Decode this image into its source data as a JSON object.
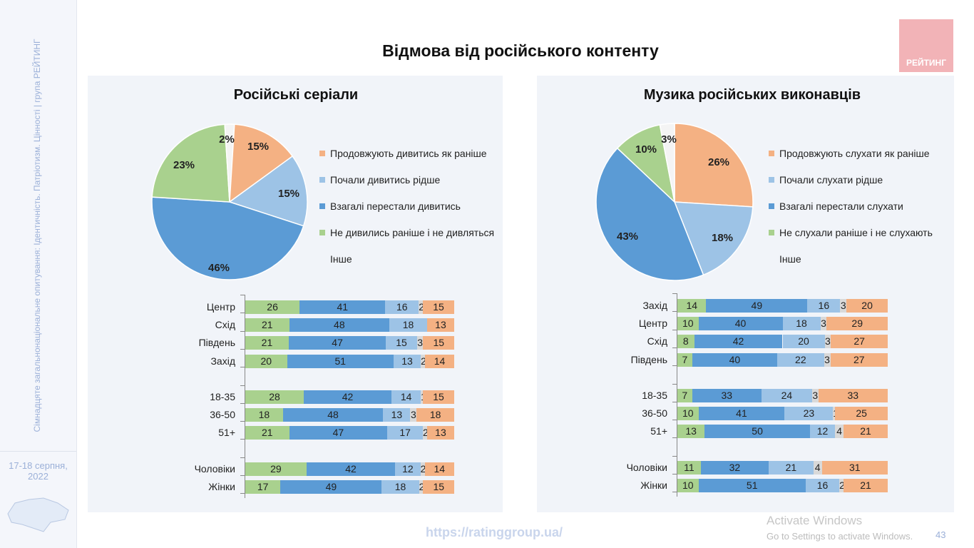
{
  "sidebar": {
    "caption": "Сімнадцяте загальнонаціональне опитування: Ідентичність. Патріотизм. Цінності | група РЕЙТИНГ",
    "date": "17-18 серпня, 2022"
  },
  "header": {
    "title": "Відмова від російського контенту",
    "logo": "РЕЙТИНГ"
  },
  "footer": {
    "url": "https://ratinggroup.ua/",
    "page": "43"
  },
  "watermark": {
    "line1": "Activate Windows",
    "line2": "Go to Settings to activate Windows."
  },
  "colors": {
    "continue": "#f4b183",
    "less": "#9dc3e6",
    "stopped": "#5b9bd5",
    "never": "#a9d18e",
    "other": "#d9d9d9"
  },
  "chart_data": [
    {
      "type": "pie",
      "title": "Російські серіали",
      "legend": [
        "Продовжують дивитись як раніше",
        "Почали дивитись рідше",
        "Взагалі перестали дивитись",
        "Не дивились раніше і не дивляться",
        "Інше"
      ],
      "values": [
        15,
        15,
        46,
        23,
        2
      ],
      "labels": [
        "15%",
        "15%",
        "46%",
        "23%",
        "2%"
      ],
      "bars": {
        "type": "bar",
        "stacked": true,
        "order": [
          "never",
          "stopped",
          "less",
          "other",
          "continue"
        ],
        "categories": [
          "Центр",
          "Схід",
          "Південь",
          "Захід",
          "",
          "18-35",
          "36-50",
          "51+",
          "",
          "Чоловіки",
          "Жінки"
        ],
        "rows": [
          [
            26,
            41,
            16,
            2,
            15
          ],
          [
            21,
            48,
            18,
            0,
            13
          ],
          [
            21,
            47,
            15,
            3,
            15
          ],
          [
            20,
            51,
            13,
            2,
            14
          ],
          null,
          [
            28,
            42,
            14,
            1,
            15
          ],
          [
            18,
            48,
            13,
            3,
            18
          ],
          [
            21,
            47,
            17,
            2,
            13
          ],
          null,
          [
            29,
            42,
            12,
            2,
            14
          ],
          [
            17,
            49,
            18,
            2,
            15
          ]
        ]
      }
    },
    {
      "type": "pie",
      "title": "Музика російських виконавців",
      "legend": [
        "Продовжують слухати як раніше",
        "Почали слухати рідше",
        "Взагалі перестали слухати",
        "Не слухали раніше і не слухають",
        "Інше"
      ],
      "values": [
        26,
        18,
        43,
        10,
        3
      ],
      "labels": [
        "26%",
        "18%",
        "43%",
        "10%",
        "3%"
      ],
      "bars": {
        "type": "bar",
        "stacked": true,
        "order": [
          "never",
          "stopped",
          "less",
          "other",
          "continue"
        ],
        "categories": [
          "Захід",
          "Центр",
          "Схід",
          "Південь",
          "",
          "18-35",
          "36-50",
          "51+",
          "",
          "Чоловіки",
          "Жінки"
        ],
        "rows": [
          [
            14,
            49,
            16,
            3,
            20
          ],
          [
            10,
            40,
            18,
            3,
            29
          ],
          [
            8,
            42,
            20,
            3,
            27
          ],
          [
            7,
            40,
            22,
            3,
            27
          ],
          null,
          [
            7,
            33,
            24,
            3,
            33
          ],
          [
            10,
            41,
            23,
            1,
            25
          ],
          [
            13,
            50,
            12,
            4,
            21
          ],
          null,
          [
            11,
            32,
            21,
            4,
            31
          ],
          [
            10,
            51,
            16,
            2,
            21
          ]
        ]
      }
    }
  ]
}
